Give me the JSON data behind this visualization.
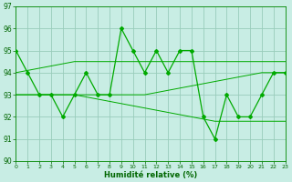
{
  "x": [
    0,
    1,
    2,
    3,
    4,
    5,
    6,
    7,
    8,
    9,
    10,
    11,
    12,
    13,
    14,
    15,
    16,
    17,
    18,
    19,
    20,
    21,
    22,
    23
  ],
  "y_main": [
    95,
    94,
    93,
    93,
    92,
    93,
    94,
    93,
    93,
    96,
    95,
    94,
    95,
    94,
    95,
    95,
    92,
    91,
    93,
    92,
    92,
    93,
    94,
    94
  ],
  "y_upper": [
    94.0,
    94.1,
    94.2,
    94.3,
    94.4,
    94.5,
    94.5,
    94.5,
    94.5,
    94.5,
    94.5,
    94.5,
    94.5,
    94.5,
    94.5,
    94.5,
    94.5,
    94.5,
    94.5,
    94.5,
    94.5,
    94.5,
    94.5,
    94.5
  ],
  "y_mid": [
    93.0,
    93.0,
    93.0,
    93.0,
    93.0,
    93.0,
    93.0,
    93.0,
    93.0,
    93.0,
    93.0,
    93.0,
    93.1,
    93.2,
    93.3,
    93.4,
    93.5,
    93.6,
    93.7,
    93.8,
    93.9,
    94.0,
    94.0,
    94.0
  ],
  "y_lower": [
    93.0,
    93.0,
    93.0,
    93.0,
    93.0,
    93.0,
    92.9,
    92.8,
    92.7,
    92.6,
    92.5,
    92.4,
    92.3,
    92.2,
    92.1,
    92.0,
    91.9,
    91.8,
    91.8,
    91.8,
    91.8,
    91.8,
    91.8,
    91.8
  ],
  "bg_color": "#c8ede4",
  "grid_color": "#99ccbb",
  "line_color": "#00aa00",
  "xlabel": "Humidité relative (%)",
  "ylim": [
    90,
    97
  ],
  "yticks": [
    90,
    91,
    92,
    93,
    94,
    95,
    96,
    97
  ],
  "xlim": [
    0,
    23
  ],
  "xticks": [
    0,
    1,
    2,
    3,
    4,
    5,
    6,
    7,
    8,
    9,
    10,
    11,
    12,
    13,
    14,
    15,
    16,
    17,
    18,
    19,
    20,
    21,
    22,
    23
  ]
}
